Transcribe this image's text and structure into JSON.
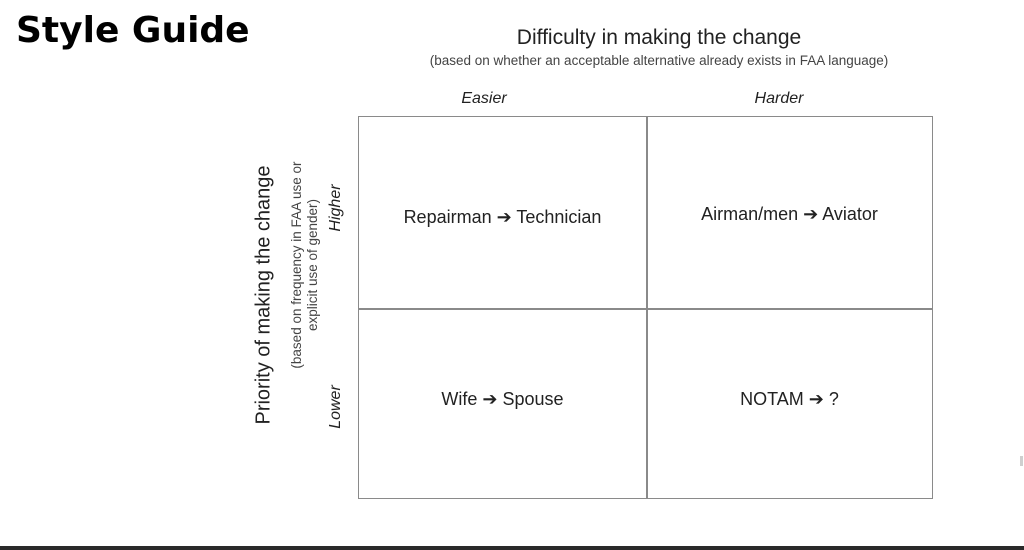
{
  "slide": {
    "title": "Style Guide"
  },
  "x_axis": {
    "title": "Difficulty in making the change",
    "subtitle": "(based on whether an acceptable alternative already exists in FAA language)",
    "columns": [
      "Easier",
      "Harder"
    ]
  },
  "y_axis": {
    "title": "Priority of making the change",
    "subtitle": "(based on frequency in FAA use or explicit use of gender)",
    "rows": [
      "Higher",
      "Lower"
    ]
  },
  "cells": {
    "higher_easier": "Repairman ➔ Technician",
    "higher_harder": "Airman/men ➔ Aviator",
    "lower_easier": "Wife ➔ Spouse",
    "lower_harder": "NOTAM ➔ ?"
  },
  "colors": {
    "grid_line": "#8a8a8a",
    "text": "#222222",
    "bottom_bar": "#2a2a2a"
  }
}
